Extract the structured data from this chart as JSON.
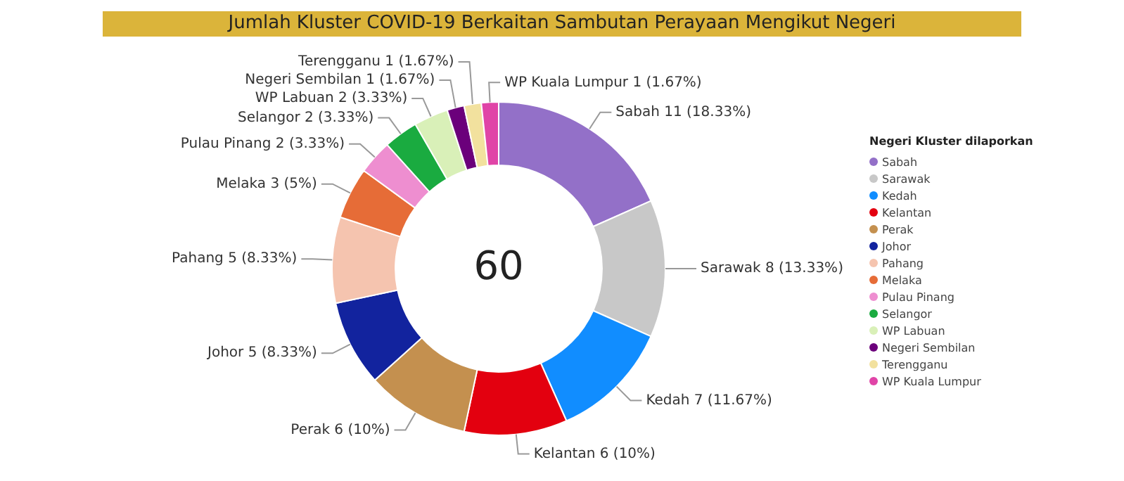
{
  "chart_data": {
    "type": "donut",
    "title": "Jumlah Kluster COVID-19 Berkaitan Sambutan Perayaan Mengikut Negeri",
    "legend_title": "Negeri Kluster dilaporkan",
    "legend": "right",
    "categories": [
      "Sabah",
      "Sarawak",
      "Kedah",
      "Kelantan",
      "Perak",
      "Johor",
      "Pahang",
      "Melaka",
      "Pulau Pinang",
      "Selangor",
      "WP Labuan",
      "Negeri Sembilan",
      "Terengganu",
      "WP Kuala Lumpur"
    ],
    "values": [
      11,
      8,
      7,
      6,
      6,
      5,
      5,
      3,
      2,
      2,
      2,
      1,
      1,
      1
    ],
    "colors": [
      "#9370c8",
      "#c8c8c8",
      "#118dff",
      "#e3000f",
      "#c4904f",
      "#12239e",
      "#f5c4af",
      "#e66c37",
      "#ee8ed0",
      "#1aab40",
      "#d9f0b8",
      "#6b007b",
      "#f2e19e",
      "#e044a7"
    ],
    "value_labels": [
      "Sabah 11 (18.33%)",
      "Sarawak 8 (13.33%)",
      "Kedah 7 (11.67%)",
      "Kelantan 6 (10%)",
      "Perak 6 (10%)",
      "Johor 5 (8.33%)",
      "Pahang 5 (8.33%)",
      "Melaka 3 (5%)",
      "Pulau Pinang 2 (3.33%)",
      "Selangor 2 (3.33%)",
      "WP Labuan 2 (3.33%)",
      "Negeri Sembilan 1 (1.67%)",
      "Terengganu 1 (1.67%)",
      "WP Kuala Lumpur 1 (1.67%)"
    ],
    "annotations": [
      "60"
    ]
  }
}
